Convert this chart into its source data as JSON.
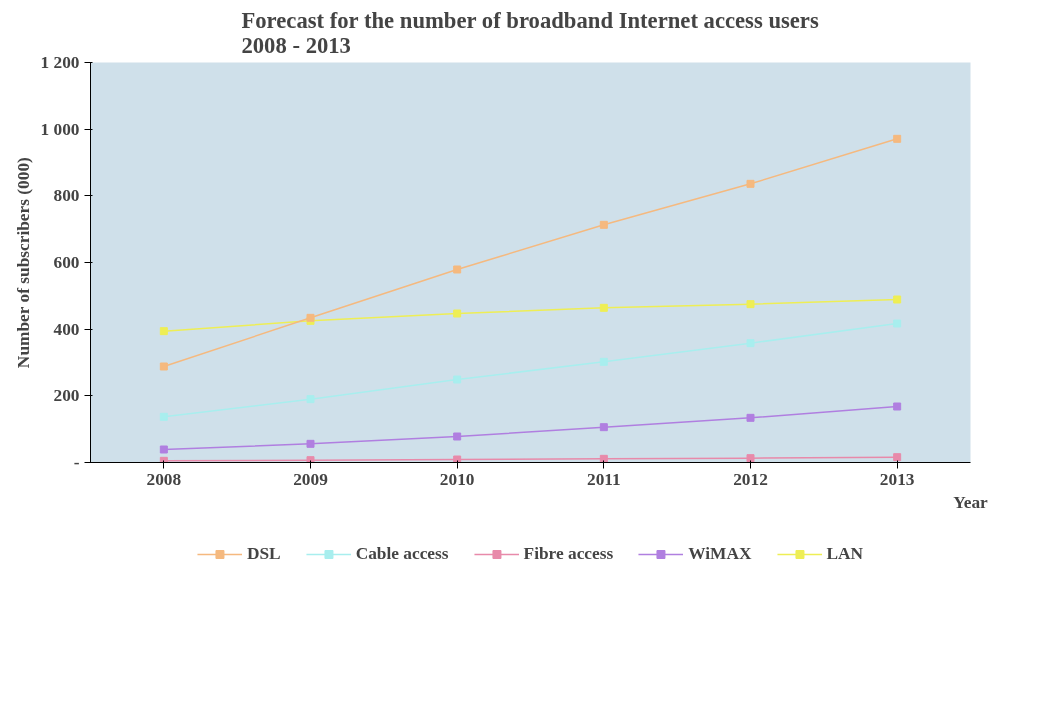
{
  "chart_data": {
    "type": "line",
    "title": "Forecast for the number of broadband Internet access users\n2008 - 2013",
    "xlabel": "Year",
    "ylabel": "Number of subscribers (000)",
    "categories": [
      "2008",
      "2009",
      "2010",
      "2011",
      "2012",
      "2013"
    ],
    "series": [
      {
        "name": "DSL",
        "color": "#f5b97f",
        "values": [
          288,
          434,
          579,
          713,
          836,
          971
        ]
      },
      {
        "name": "Cable access",
        "color": "#a8eeee",
        "values": [
          137,
          190,
          249,
          302,
          358,
          417
        ]
      },
      {
        "name": "Fibre access",
        "color": "#e88aaa",
        "values": [
          5,
          7,
          9,
          11,
          13,
          16
        ]
      },
      {
        "name": "WiMAX",
        "color": "#b07fe0",
        "values": [
          39,
          56,
          78,
          106,
          134,
          168
        ]
      },
      {
        "name": "LAN",
        "color": "#eeee55",
        "values": [
          394,
          425,
          447,
          464,
          475,
          489
        ]
      }
    ],
    "ylim": [
      0,
      1200
    ],
    "yticks": [
      {
        "value": 0,
        "label": "-"
      },
      200,
      400,
      600,
      800,
      {
        "value": 1000,
        "label": "1 000"
      },
      {
        "value": 1200,
        "label": "1 200"
      }
    ],
    "grid": false,
    "legend": "bottom",
    "marker": "square",
    "line_style": "solid"
  }
}
